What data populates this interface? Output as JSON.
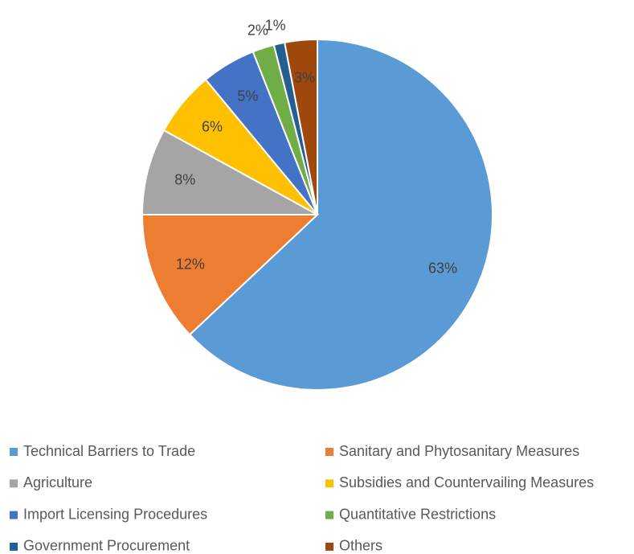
{
  "chart_data": {
    "type": "pie",
    "categories": [
      "Technical Barriers to Trade",
      "Sanitary and Phytosanitary Measures",
      "Agriculture",
      "Subsidies and Countervailing Measures",
      "Import Licensing Procedures",
      "Quantitative Restrictions",
      "Government Procurement",
      "Others"
    ],
    "values": [
      63,
      12,
      8,
      6,
      5,
      2,
      1,
      3
    ],
    "value_labels": [
      "63%",
      "12%",
      "8%",
      "6%",
      "5%",
      "2%",
      "1%",
      "3%"
    ],
    "colors": [
      "#5b9bd5",
      "#ed7d31",
      "#a5a5a5",
      "#ffc000",
      "#4472c4",
      "#70ad47",
      "#255e91",
      "#9e480e"
    ],
    "legend": "bottom"
  }
}
